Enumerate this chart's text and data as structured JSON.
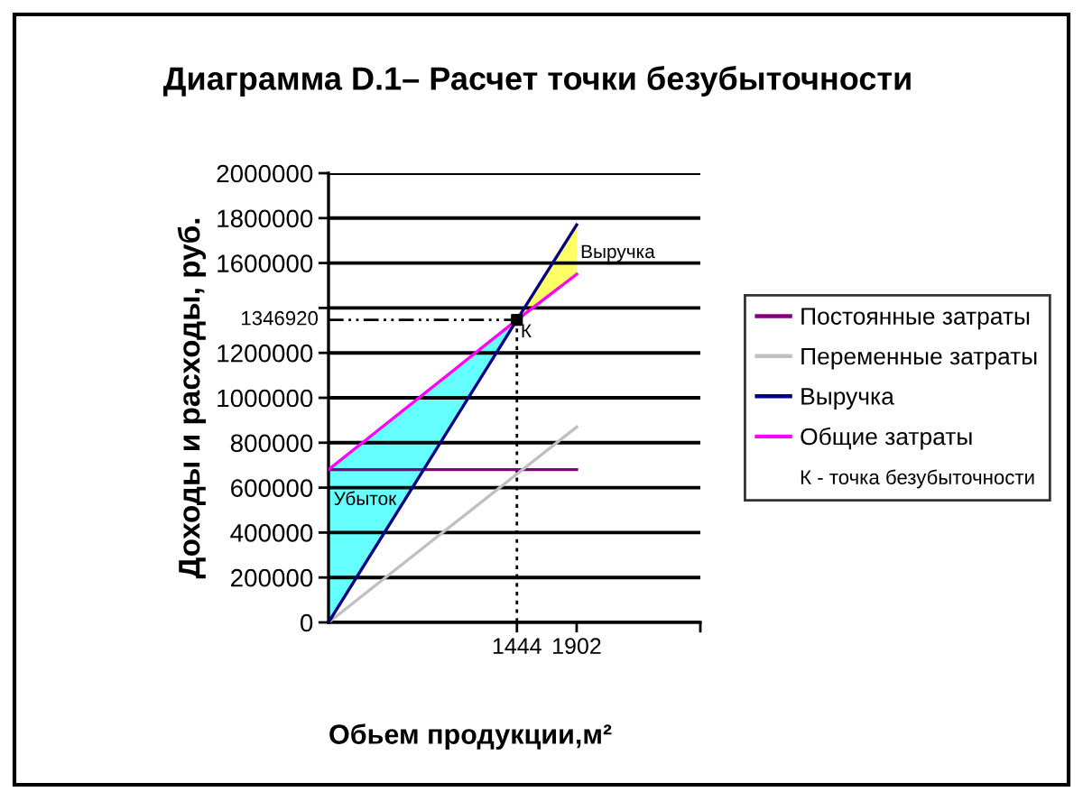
{
  "chart_data": {
    "type": "line",
    "title": "Диаграмма D.1– Расчет точки безубыточности",
    "xlabel": "Обьем продукции,м²",
    "ylabel": "Доходы и расходы, руб.",
    "series": [
      {
        "color": "#000000",
        "x": [
          0,
          1444
        ],
        "values": [
          1346920,
          1346920
        ],
        "line_style": "dashed"
      },
      {
        "color": "#000000",
        "x": [
          1444,
          1444
        ],
        "values": [
          1346920,
          0
        ],
        "line_style": "dotted"
      },
      {
        "name": "Постоянные затраты",
        "color": "#800080",
        "x": [
          0,
          1902
        ],
        "values": [
          680000,
          680000
        ]
      },
      {
        "name": "Переменные затраты",
        "color": "#c0c0c0",
        "x": [
          0,
          1902
        ],
        "values": [
          0,
          870000
        ]
      },
      {
        "name": "Выручка",
        "color": "#000080",
        "x": [
          0,
          1444,
          1902
        ],
        "values": [
          0,
          1346920,
          1770000
        ],
        "lower": [
          0,
          1346920,
          null
        ],
        "upper": [
          680000,
          1346920,
          null
        ],
        "colors": [
          "#66ffff",
          "#66ffff",
          null
        ]
      },
      {
        "name": "Общие затраты",
        "color": "#ff00ff",
        "x": [
          0,
          1444,
          1902
        ],
        "values": [
          680000,
          1346920,
          1550000
        ],
        "lower": [
          null,
          1346920,
          1550000
        ],
        "upper": [
          null,
          1346920,
          1770000
        ],
        "colors": [
          null,
          "#ffff66",
          "#ffff66"
        ]
      },
      {
        "type": "scatter",
        "color": "#000000",
        "x": [
          1444
        ],
        "values": [
          1346920
        ],
        "marker": "square"
      }
    ],
    "xlim": [
      0,
      2850
    ],
    "xticks": [
      1444,
      1902,
      {
        "value": 2850,
        "label": null
      }
    ],
    "ylim": [
      0,
      2000000
    ],
    "yticks": [
      0,
      200000,
      400000,
      600000,
      800000,
      1000000,
      1200000,
      {
        "value": 1400000,
        "label": null
      },
      1600000,
      1800000,
      2000000
    ],
    "grid": "y",
    "legend": "right",
    "line_style": "solid",
    "marker": "none",
    "annotations": [
      {
        "text": "Убыток",
        "x": 10,
        "y": 600000
      },
      {
        "text": "Выручка",
        "x": 1902,
        "y": 1700000
      },
      {
        "text": "К",
        "x": 1444,
        "y": 1346920
      },
      {
        "text": "1346920",
        "x": 0,
        "y": 1346920
      },
      "К - точка безубыточности"
    ]
  }
}
